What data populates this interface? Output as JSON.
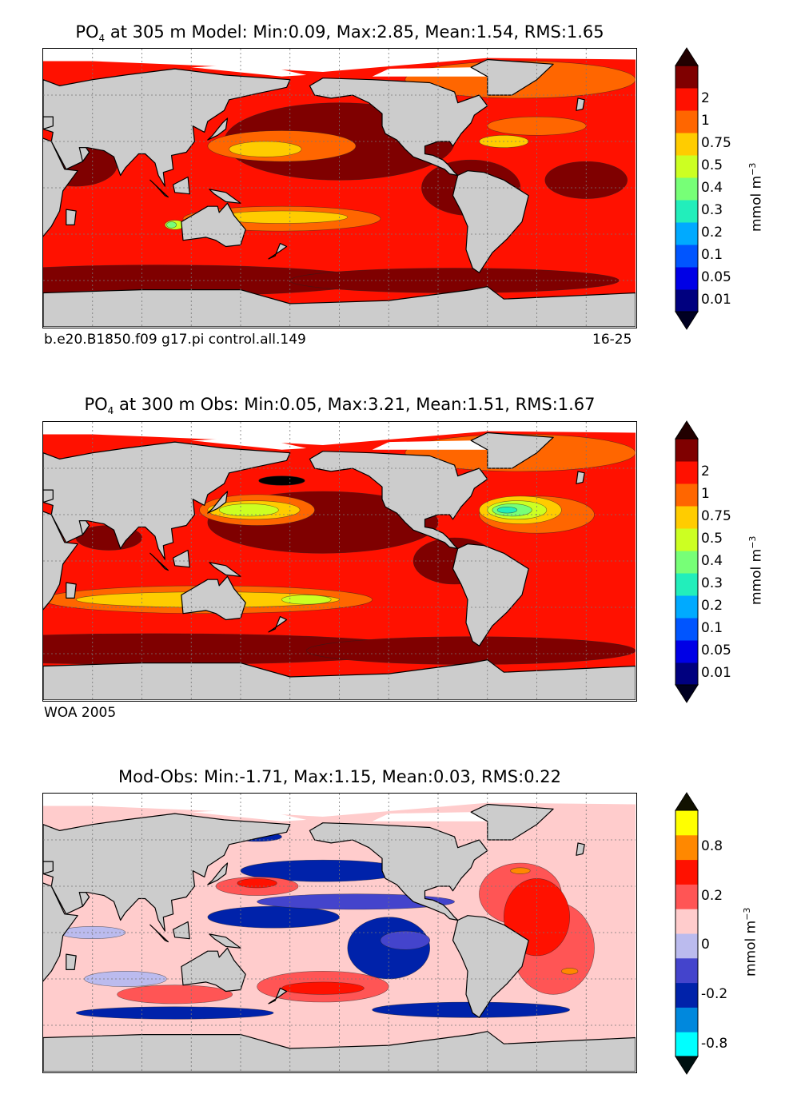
{
  "colors": {
    "land": "#cccccc",
    "seaice": "#ffffff",
    "coast": "#000000",
    "grid": "#777777"
  },
  "chart_data": [
    {
      "type": "heatmap",
      "title_var": "PO",
      "title_sub": "4",
      "title_rest": "at 305 m Model: Min:0.09, Max:2.85, Mean:1.54, RMS:1.65",
      "caption_left": "b.e20.B1850.f09 g17.pi control.all.149",
      "caption_right": "16-25",
      "unit_label": "mmol m",
      "unit_exp": "−3",
      "colorbar": {
        "labels": [
          "0.01",
          "0.05",
          "0.1",
          "0.2",
          "0.3",
          "0.4",
          "0.5",
          "0.75",
          "1",
          "2"
        ],
        "colors": [
          "#00007f",
          "#0000e6",
          "#0055ff",
          "#00aaff",
          "#22eebb",
          "#77ff77",
          "#ccff22",
          "#ffcc00",
          "#ff6600",
          "#ff1100",
          "#7f0000"
        ],
        "under": "#000022",
        "over": "#220000"
      },
      "field": "model"
    },
    {
      "type": "heatmap",
      "title_var": "PO",
      "title_sub": "4",
      "title_rest": "at 300 m Obs: Min:0.05, Max:3.21, Mean:1.51, RMS:1.67",
      "caption_left": "WOA 2005",
      "caption_right": "",
      "unit_label": "mmol m",
      "unit_exp": "−3",
      "colorbar": {
        "labels": [
          "0.01",
          "0.05",
          "0.1",
          "0.2",
          "0.3",
          "0.4",
          "0.5",
          "0.75",
          "1",
          "2"
        ],
        "colors": [
          "#00007f",
          "#0000e6",
          "#0055ff",
          "#00aaff",
          "#22eebb",
          "#77ff77",
          "#ccff22",
          "#ffcc00",
          "#ff6600",
          "#ff1100",
          "#7f0000"
        ],
        "under": "#000022",
        "over": "#220000"
      },
      "field": "obs"
    },
    {
      "type": "heatmap",
      "title_var": "",
      "title_sub": "",
      "title_rest": "Mod-Obs: Min:-1.71, Max:1.15, Mean:0.03, RMS:0.22",
      "caption_left": "",
      "caption_right": "",
      "unit_label": "mmol m",
      "unit_exp": "−3",
      "colorbar": {
        "labels": [
          "-0.8",
          "",
          "-0.2",
          "",
          "0",
          "",
          "0.2",
          "",
          "0.8",
          ""
        ],
        "colors": [
          "#00ffff",
          "#0088dd",
          "#0022aa",
          "#4444cc",
          "#bbbbee",
          "#ffcccc",
          "#ff5555",
          "#ff1100",
          "#ff8800",
          "#ffff00"
        ],
        "under": "#001111",
        "over": "#111100"
      },
      "field": "diff"
    }
  ]
}
